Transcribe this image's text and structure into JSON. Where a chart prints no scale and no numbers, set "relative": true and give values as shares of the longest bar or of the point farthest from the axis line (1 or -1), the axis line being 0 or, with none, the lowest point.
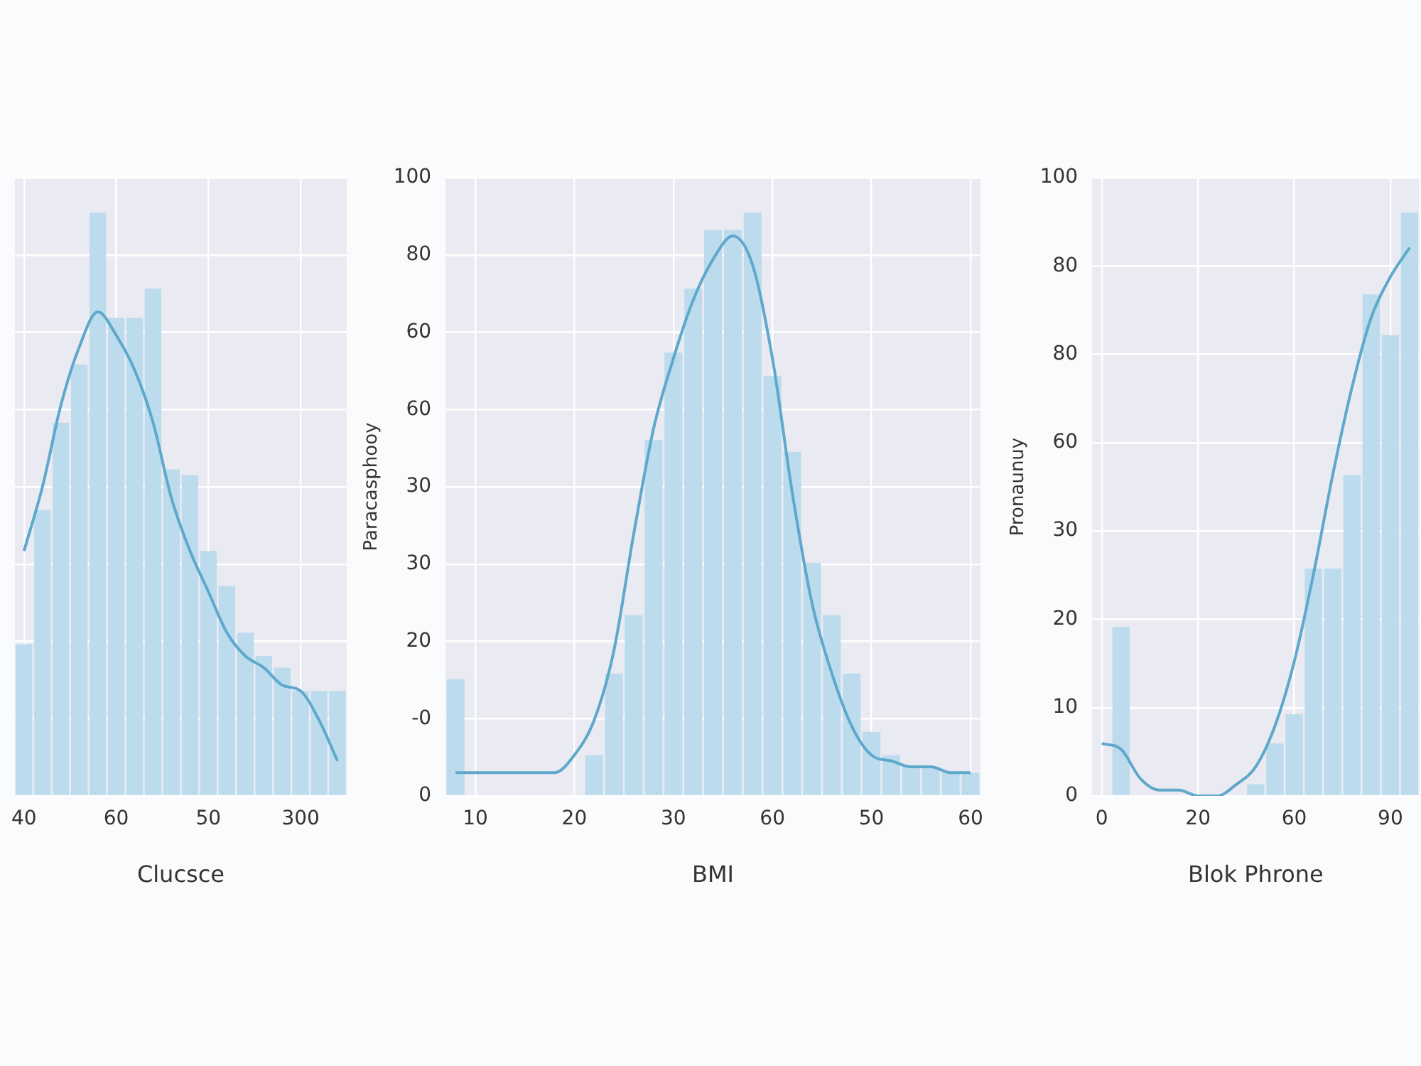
{
  "chart_data": [
    {
      "type": "bar",
      "relative": true,
      "xlabel": "Clucsce",
      "categories": [
        "40",
        null,
        null,
        null,
        null,
        "60",
        null,
        null,
        null,
        null,
        "50",
        null,
        null,
        null,
        null,
        "300",
        null,
        null
      ],
      "values": [
        0.26,
        0.49,
        0.64,
        0.74,
        1,
        0.82,
        0.82,
        0.87,
        0.56,
        0.55,
        0.42,
        0.36,
        0.28,
        0.24,
        0.22,
        0.18,
        0.18,
        0.18
      ],
      "color": "#bcdcee",
      "series": [
        {
          "type": "line",
          "color": "#5ea8cc",
          "values": [
            0.42,
            0.53,
            0.67,
            0.77,
            0.83,
            0.79,
            0.73,
            0.64,
            0.51,
            0.42,
            0.35,
            0.28,
            0.24,
            0.22,
            0.19,
            0.18,
            0.13,
            0.06
          ]
        }
      ],
      "grid": true
    },
    {
      "type": "bar",
      "relative": true,
      "xlabel": "BMI",
      "ylabel": "Paracasphooy",
      "categories": [
        null,
        "10",
        null,
        null,
        null,
        null,
        "20",
        null,
        null,
        null,
        null,
        "30",
        null,
        null,
        null,
        null,
        "60",
        null,
        null,
        null,
        null,
        "50",
        null,
        null,
        null,
        null,
        "60"
      ],
      "values": [
        0.2,
        0,
        0,
        0,
        0,
        0,
        0,
        0.07,
        0.21,
        0.31,
        0.61,
        0.76,
        0.87,
        0.97,
        0.97,
        1,
        0.72,
        0.59,
        0.4,
        0.31,
        0.21,
        0.11,
        0.07,
        0.05,
        0.05,
        0.04,
        0.04
      ],
      "color": "#bcdcee",
      "series": [
        {
          "type": "line",
          "color": "#5ea8cc",
          "values": [
            0.04,
            0.04,
            0.04,
            0.04,
            0.04,
            0.04,
            0.07,
            0.13,
            0.25,
            0.45,
            0.63,
            0.75,
            0.85,
            0.92,
            0.96,
            0.91,
            0.75,
            0.52,
            0.33,
            0.21,
            0.12,
            0.07,
            0.06,
            0.05,
            0.05,
            0.04,
            0.04
          ]
        }
      ],
      "annotations": [
        "100",
        "80",
        "60",
        "60",
        "30",
        "30",
        "20",
        "-0",
        "0"
      ],
      "grid": true
    },
    {
      "type": "bar",
      "relative": true,
      "xlabel": "Blok Phrone",
      "ylabel": "Pronaunuy",
      "categories": [
        "0",
        null,
        null,
        null,
        null,
        "20",
        null,
        null,
        null,
        null,
        "60",
        null,
        null,
        null,
        null,
        "90",
        null
      ],
      "values": [
        0,
        0.29,
        0,
        0,
        0,
        0,
        0,
        0,
        0.02,
        0.09,
        0.14,
        0.39,
        0.39,
        0.55,
        0.86,
        0.79,
        1
      ],
      "color": "#bcdcee",
      "series": [
        {
          "type": "line",
          "color": "#5ea8cc",
          "values": [
            0.09,
            0.08,
            0.03,
            0.01,
            0.01,
            0,
            0,
            0.02,
            0.05,
            0.12,
            0.23,
            0.38,
            0.55,
            0.7,
            0.82,
            0.89,
            0.94
          ]
        }
      ],
      "annotations": [
        "100",
        "80",
        "80",
        "60",
        "30",
        "20",
        "10",
        "0"
      ],
      "grid": true
    }
  ]
}
